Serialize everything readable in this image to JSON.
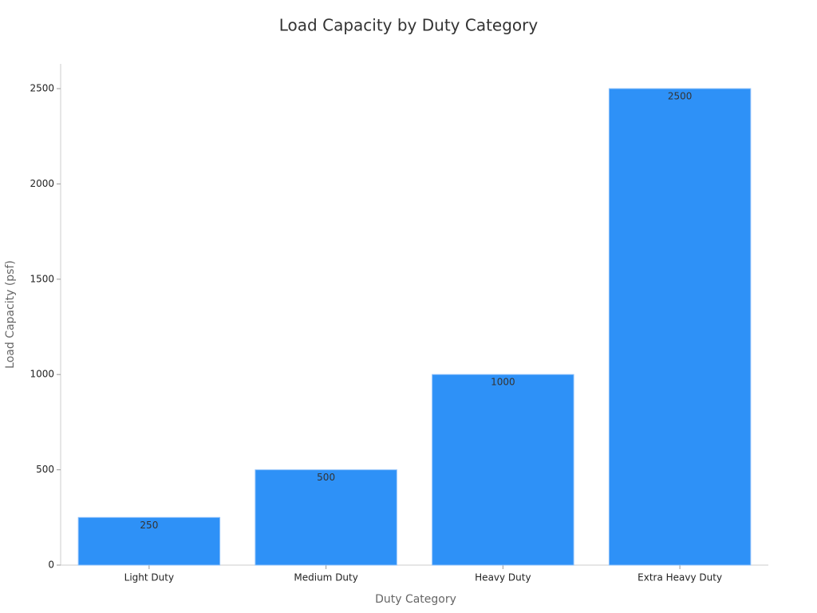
{
  "chart_data": {
    "type": "bar",
    "title": "Load Capacity by Duty Category",
    "x_label": "Duty Category",
    "y_label": "Load Capacity (psf)",
    "categories": [
      "Light Duty",
      "Medium Duty",
      "Heavy Duty",
      "Extra Heavy Duty"
    ],
    "values": [
      250,
      500,
      1000,
      2500
    ],
    "color": "#2e91f7",
    "ylim": [
      0,
      2630
    ],
    "yticks": [
      0,
      500,
      1000,
      1500,
      2000,
      2500
    ]
  }
}
